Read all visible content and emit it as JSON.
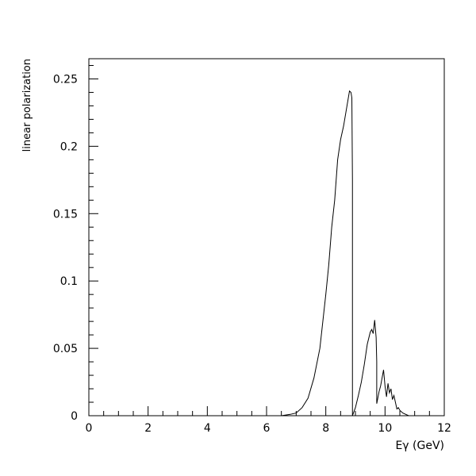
{
  "chart_data": {
    "type": "line",
    "title": "",
    "xlabel": "Eγ (GeV)",
    "ylabel": "linear polarization",
    "xlim": [
      0,
      12
    ],
    "ylim": [
      0,
      0.265
    ],
    "xticks": [
      0,
      2,
      4,
      6,
      8,
      10,
      12
    ],
    "xtick_labels": [
      "0",
      "2",
      "4",
      "6",
      "8",
      "10",
      "12"
    ],
    "yticks": [
      0,
      0.05,
      0.1,
      0.15,
      0.2,
      0.25
    ],
    "ytick_labels": [
      "0",
      "0.05",
      "0.1",
      "0.15",
      "0.2",
      "0.25"
    ],
    "grid": false,
    "series": [
      {
        "name": "",
        "color": "#000000",
        "x": [
          6.25,
          6.5,
          6.8,
          7.0,
          7.2,
          7.4,
          7.6,
          7.8,
          8.0,
          8.1,
          8.2,
          8.3,
          8.4,
          8.5,
          8.6,
          8.7,
          8.8,
          8.85,
          8.88,
          8.9,
          8.9,
          9.0,
          9.1,
          9.2,
          9.3,
          9.4,
          9.5,
          9.55,
          9.6,
          9.65,
          9.7,
          9.72,
          9.72,
          9.8,
          9.85,
          9.9,
          9.95,
          10.0,
          10.05,
          10.1,
          10.15,
          10.2,
          10.25,
          10.3,
          10.35,
          10.4,
          10.45,
          10.5,
          10.6,
          10.7,
          10.8
        ],
        "y": [
          0.0,
          0.0,
          0.001,
          0.002,
          0.006,
          0.013,
          0.028,
          0.05,
          0.09,
          0.112,
          0.14,
          0.16,
          0.19,
          0.205,
          0.215,
          0.228,
          0.241,
          0.24,
          0.236,
          0.175,
          0.0,
          0.006,
          0.015,
          0.025,
          0.038,
          0.053,
          0.062,
          0.064,
          0.061,
          0.071,
          0.058,
          0.04,
          0.009,
          0.018,
          0.022,
          0.028,
          0.034,
          0.022,
          0.014,
          0.024,
          0.017,
          0.02,
          0.012,
          0.015,
          0.01,
          0.005,
          0.006,
          0.004,
          0.002,
          0.001,
          0.0
        ]
      }
    ]
  }
}
